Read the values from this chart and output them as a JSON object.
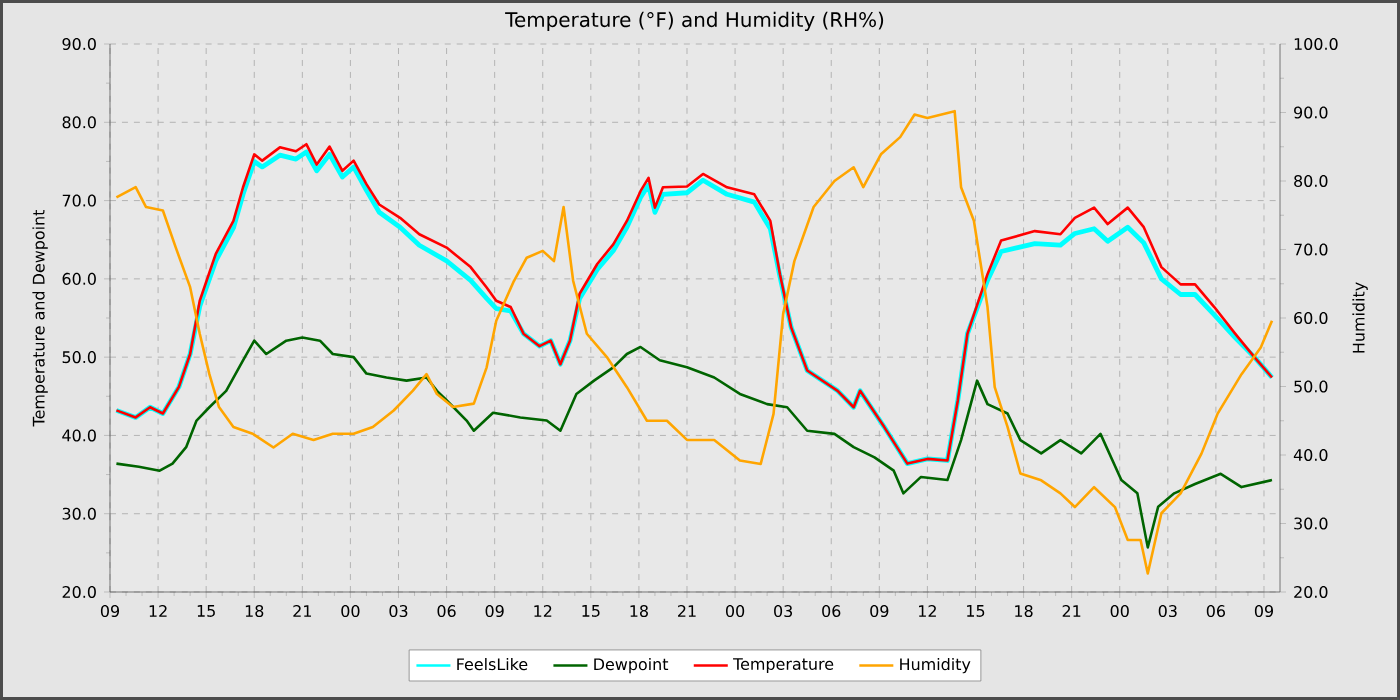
{
  "chart_data": {
    "type": "line",
    "title": "Temperature (°F) and Humidity (RH%)",
    "ylabel": "Temperature and Dewpoint",
    "y2label": "Humidity",
    "xlim": [
      9,
      82
    ],
    "xticks": [
      {
        "value": 9,
        "label": "09"
      },
      {
        "value": 12,
        "label": "12"
      },
      {
        "value": 15,
        "label": "15"
      },
      {
        "value": 18,
        "label": "18"
      },
      {
        "value": 21,
        "label": "21"
      },
      {
        "value": 24,
        "label": "00"
      },
      {
        "value": 27,
        "label": "03"
      },
      {
        "value": 30,
        "label": "06"
      },
      {
        "value": 33,
        "label": "09"
      },
      {
        "value": 36,
        "label": "12"
      },
      {
        "value": 39,
        "label": "15"
      },
      {
        "value": 42,
        "label": "18"
      },
      {
        "value": 45,
        "label": "21"
      },
      {
        "value": 48,
        "label": "00"
      },
      {
        "value": 51,
        "label": "03"
      },
      {
        "value": 54,
        "label": "06"
      },
      {
        "value": 57,
        "label": "09"
      },
      {
        "value": 60,
        "label": "12"
      },
      {
        "value": 63,
        "label": "15"
      },
      {
        "value": 66,
        "label": "18"
      },
      {
        "value": 69,
        "label": "21"
      },
      {
        "value": 72,
        "label": "00"
      },
      {
        "value": 75,
        "label": "03"
      },
      {
        "value": 78,
        "label": "06"
      },
      {
        "value": 81,
        "label": "09"
      }
    ],
    "ylim": [
      20,
      90
    ],
    "yticks": [
      {
        "value": 20,
        "label": "20.0"
      },
      {
        "value": 30,
        "label": "30.0"
      },
      {
        "value": 40,
        "label": "40.0"
      },
      {
        "value": 50,
        "label": "50.0"
      },
      {
        "value": 60,
        "label": "60.0"
      },
      {
        "value": 70,
        "label": "70.0"
      },
      {
        "value": 80,
        "label": "80.0"
      },
      {
        "value": 90,
        "label": "90.0"
      }
    ],
    "y2lim": [
      20,
      100
    ],
    "y2ticks": [
      {
        "value": 20,
        "label": "20.0"
      },
      {
        "value": 30,
        "label": "30.0"
      },
      {
        "value": 40,
        "label": "40.0"
      },
      {
        "value": 50,
        "label": "50.0"
      },
      {
        "value": 60,
        "label": "60.0"
      },
      {
        "value": 70,
        "label": "70.0"
      },
      {
        "value": 80,
        "label": "80.0"
      },
      {
        "value": 90,
        "label": "90.0"
      },
      {
        "value": 100,
        "label": "100.0"
      }
    ],
    "grid": true,
    "legend": "bottom",
    "line_style": "solid",
    "series": [
      {
        "name": "FeelsLike",
        "color": "#00ffff",
        "x": [
          9.4,
          10.6,
          11.5,
          12.3,
          13.3,
          14,
          14.6,
          15.6,
          16.7,
          17.3,
          18,
          18.5,
          19.6,
          20.6,
          21.25,
          21.9,
          22.7,
          23.5,
          24.2,
          25,
          25.8,
          27.1,
          28.3,
          30,
          31.5,
          32.5,
          33.1,
          34,
          34.8,
          35.8,
          36.5,
          37.1,
          37.7,
          38.3,
          39.4,
          40.4,
          41.25,
          42.1,
          42.6,
          43,
          43.5,
          45,
          46,
          47.5,
          49.2,
          50.2,
          50.8,
          51.5,
          52.5,
          54.4,
          55.4,
          55.8,
          57.3,
          58.75,
          60,
          61.25,
          61.9,
          62.5,
          63.75,
          64.6,
          66.7,
          68.3,
          69.2,
          70.4,
          71.25,
          72.5,
          73.5,
          74.6,
          75.8,
          76.7,
          77.9,
          79.2,
          80.4,
          81.5
        ],
        "values": [
          43.2,
          42.3,
          43.6,
          42.8,
          46.2,
          50.4,
          56.5,
          62.3,
          66.5,
          70.8,
          75.0,
          74.3,
          75.8,
          75.3,
          76.2,
          73.8,
          75.9,
          73.0,
          74.3,
          71.3,
          68.5,
          66.6,
          64.3,
          62.3,
          59.8,
          57.5,
          56.2,
          55.9,
          53,
          51.4,
          52.1,
          49.1,
          52.1,
          57.5,
          61.2,
          63.6,
          66.6,
          70.4,
          72.0,
          68.5,
          70.8,
          71.0,
          72.6,
          70.8,
          69.8,
          66.4,
          60.3,
          53.8,
          48.3,
          45.7,
          43.6,
          45.7,
          41.1,
          36.4,
          37,
          36.8,
          44.5,
          53,
          59.8,
          63.5,
          64.5,
          64.3,
          65.8,
          66.4,
          64.8,
          66.6,
          64.6,
          60.0,
          58.0,
          58.0,
          55.4,
          52.5,
          50,
          47.4
        ]
      },
      {
        "name": "Dewpoint",
        "color": "#006400",
        "x": [
          9.4,
          10.8,
          12.1,
          12.9,
          13.75,
          14.4,
          15.2,
          16.25,
          17.3,
          18,
          18.75,
          20,
          21,
          22.1,
          22.9,
          24.2,
          25,
          26.25,
          27.5,
          28.75,
          29.4,
          30,
          31.25,
          31.7,
          32.9,
          34.6,
          36.25,
          37.1,
          38.1,
          39.2,
          40.4,
          41.25,
          42.1,
          43.3,
          45,
          46.7,
          48.3,
          50,
          51.25,
          52.5,
          54.2,
          55.4,
          56.7,
          57.9,
          58.5,
          59.6,
          61.25,
          62.1,
          63.1,
          63.75,
          65,
          65.8,
          67.1,
          68.3,
          69.6,
          70.8,
          72.1,
          73.1,
          73.75,
          74.4,
          75.4,
          76.7,
          78.3,
          79.6,
          81.5
        ],
        "values": [
          36.4,
          36,
          35.5,
          36.4,
          38.5,
          41.9,
          43.6,
          45.7,
          49.6,
          52.1,
          50.4,
          52.1,
          52.5,
          52.1,
          50.4,
          50,
          47.9,
          47.4,
          47,
          47.4,
          45.7,
          44.5,
          41.9,
          40.6,
          42.9,
          42.3,
          41.9,
          40.6,
          45.3,
          47,
          48.7,
          50.4,
          51.3,
          49.6,
          48.7,
          47.4,
          45.3,
          44,
          43.6,
          40.6,
          40.2,
          38.5,
          37.2,
          35.5,
          32.6,
          34.7,
          34.3,
          39.4,
          47,
          44,
          42.8,
          39.4,
          37.7,
          39.4,
          37.7,
          40.2,
          34.3,
          32.6,
          25.7,
          30.9,
          32.6,
          33.8,
          35.1,
          33.4,
          34.3
        ]
      },
      {
        "name": "Temperature",
        "color": "#ff0000",
        "x": [
          9.4,
          10.6,
          11.5,
          12.3,
          13.3,
          14,
          14.6,
          15.6,
          16.7,
          17.3,
          18,
          18.5,
          19.6,
          20.6,
          21.25,
          21.9,
          22.7,
          23.5,
          24.2,
          25,
          25.8,
          27.1,
          28.3,
          30,
          31.5,
          32.5,
          33.1,
          34,
          34.8,
          35.8,
          36.5,
          37.1,
          37.7,
          38.3,
          39.4,
          40.4,
          41.25,
          42.1,
          42.6,
          43,
          43.5,
          45,
          46,
          47.5,
          49.2,
          50.2,
          50.8,
          51.5,
          52.5,
          54.4,
          55.4,
          55.8,
          57.3,
          58.75,
          60,
          61.25,
          61.9,
          62.5,
          63.75,
          64.6,
          66.7,
          68.3,
          69.2,
          70.4,
          71.25,
          72.5,
          73.5,
          74.6,
          75.8,
          76.7,
          77.9,
          79.2,
          80.4,
          81.5
        ],
        "values": [
          43.2,
          42.3,
          43.6,
          42.8,
          46.2,
          50.4,
          57.2,
          63.2,
          67.4,
          71.7,
          75.9,
          75.1,
          76.8,
          76.3,
          77.2,
          74.6,
          76.9,
          73.8,
          75.1,
          72.1,
          69.5,
          67.8,
          65.7,
          64,
          61.5,
          58.9,
          57.2,
          56.4,
          53,
          51.4,
          52.1,
          49.1,
          52.1,
          58.1,
          61.9,
          64.4,
          67.4,
          71.2,
          72.9,
          69.1,
          71.7,
          71.8,
          73.4,
          71.7,
          70.8,
          67.4,
          60.6,
          53.8,
          48.3,
          45.7,
          43.6,
          45.7,
          41.1,
          36.4,
          37,
          36.8,
          44.5,
          53,
          60.6,
          64.9,
          66.1,
          65.7,
          67.8,
          69.1,
          67,
          69.1,
          66.6,
          61.5,
          59.3,
          59.3,
          56.4,
          53,
          50,
          47.4
        ]
      },
      {
        "name": "Humidity",
        "color": "#ffa500",
        "axis": "y2",
        "x": [
          9.4,
          10.6,
          11.25,
          12.3,
          13.1,
          14,
          14.6,
          15.2,
          15.8,
          16.7,
          17.9,
          19.2,
          20.4,
          21.7,
          22.9,
          24.2,
          25.4,
          26.7,
          27.9,
          28.75,
          29.4,
          30.4,
          31.7,
          32.5,
          33.1,
          34.2,
          35,
          36,
          36.7,
          37.3,
          37.9,
          38.75,
          40,
          41.25,
          42.5,
          43.75,
          45,
          46.7,
          48.3,
          49.6,
          50.4,
          51,
          51.7,
          52.9,
          54.2,
          55.4,
          56,
          57.1,
          58.3,
          59.2,
          60,
          61.7,
          62.1,
          62.9,
          63.75,
          64.2,
          65,
          65.8,
          67.1,
          68.3,
          69.2,
          70.4,
          71.7,
          72.5,
          73.3,
          73.75,
          74.6,
          75.8,
          77.1,
          78.1,
          79.6,
          80.8,
          81.5
        ],
        "values": [
          77.6,
          79.1,
          76.2,
          75.7,
          70.3,
          64.5,
          57.7,
          51.8,
          47,
          44.1,
          43.1,
          41.1,
          43.1,
          42.2,
          43.1,
          43.1,
          44.1,
          46.5,
          49.4,
          51.8,
          48.9,
          47,
          47.5,
          52.8,
          59.6,
          65.4,
          68.8,
          69.8,
          68.3,
          76.2,
          65.4,
          57.7,
          54.3,
          49.9,
          45,
          45,
          42.2,
          42.2,
          39.2,
          38.7,
          46,
          60.6,
          68.3,
          76.2,
          80,
          82,
          79.1,
          83.9,
          86.4,
          89.7,
          89.2,
          90.2,
          79.1,
          74.2,
          61.6,
          49.9,
          44.1,
          37.3,
          36.3,
          34.4,
          32.4,
          35.3,
          32.4,
          27.6,
          27.6,
          22.7,
          31.5,
          34.4,
          40.2,
          46,
          51.8,
          55.7,
          59.6
        ]
      }
    ]
  }
}
